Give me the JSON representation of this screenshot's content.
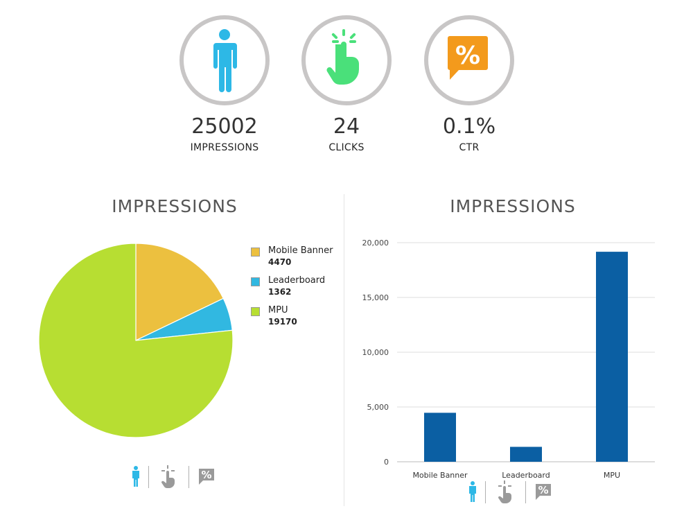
{
  "kpis": [
    {
      "value": "25002",
      "label": "IMPRESSIONS",
      "icon": "person-icon",
      "color": "#2db8e6"
    },
    {
      "value": "24",
      "label": "CLICKS",
      "icon": "click-hand-icon",
      "color": "#4ae07a"
    },
    {
      "value": "0.1%",
      "label": "CTR",
      "icon": "percent-icon",
      "color": "#f39a1c"
    }
  ],
  "left_title": "IMPRESSIONS",
  "right_title": "IMPRESSIONS",
  "legend": [
    {
      "label": "Mobile Banner",
      "value": "4470",
      "color": "#ecc03f"
    },
    {
      "label": "Leaderboard",
      "value": "1362",
      "color": "#31b8e1"
    },
    {
      "label": "MPU",
      "value": "19170",
      "color": "#b7de32"
    }
  ],
  "chart_data": [
    {
      "type": "pie",
      "title": "IMPRESSIONS",
      "categories": [
        "Mobile Banner",
        "Leaderboard",
        "MPU"
      ],
      "values": [
        4470,
        1362,
        19170
      ],
      "colors": [
        "#ecc03f",
        "#31b8e1",
        "#b7de32"
      ],
      "legend_position": "right"
    },
    {
      "type": "bar",
      "title": "IMPRESSIONS",
      "categories": [
        "Mobile Banner",
        "Leaderboard",
        "MPU"
      ],
      "values": [
        4470,
        1362,
        19170
      ],
      "ylim": [
        0,
        20000
      ],
      "yticks": [
        0,
        5000,
        10000,
        15000,
        20000
      ],
      "ytick_labels": [
        "0",
        "5,000",
        "10,000",
        "15,000",
        "20,000"
      ],
      "bar_color": "#0b5fa3",
      "grid": true
    }
  ],
  "switcher": {
    "active_color": "#2db8e6",
    "inactive_color": "#9a9a9a",
    "icons": [
      "person-icon",
      "click-hand-icon",
      "percent-icon"
    ]
  }
}
